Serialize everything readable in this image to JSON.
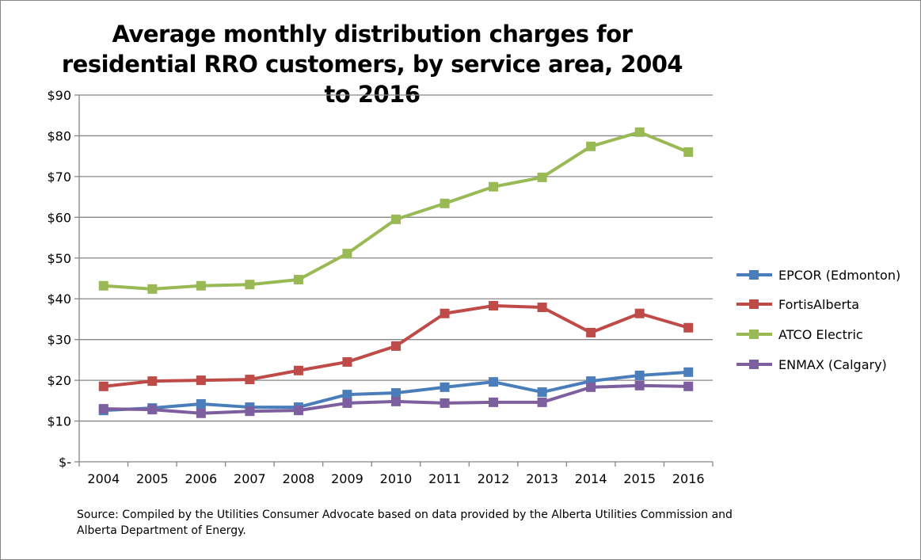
{
  "chart_data": {
    "type": "line",
    "title": "Average monthly distribution charges for residential RRO customers, by service area, 2004 to 2016",
    "source": "Source: Compiled by the Utilities Consumer Advocate based on data provided by the Alberta Utilities Commission and Alberta Department of Energy.",
    "categories": [
      "2004",
      "2005",
      "2006",
      "2007",
      "2008",
      "2009",
      "2010",
      "2011",
      "2012",
      "2013",
      "2014",
      "2015",
      "2016"
    ],
    "ylim": [
      0,
      90
    ],
    "yticks": [
      0,
      10,
      20,
      30,
      40,
      50,
      60,
      70,
      80,
      90
    ],
    "ytick_labels": [
      "$-",
      "$10",
      "$20",
      "$30",
      "$40",
      "$50",
      "$60",
      "$70",
      "$80",
      "$90"
    ],
    "grid": true,
    "legend": "right",
    "series": [
      {
        "name": "EPCOR (Edmonton)",
        "color": "#4a7ebb",
        "values": [
          12.6,
          13.2,
          14.2,
          13.4,
          13.4,
          16.5,
          16.9,
          18.3,
          19.6,
          17.1,
          19.8,
          21.2,
          22.0
        ]
      },
      {
        "name": "FortisAlberta",
        "color": "#be4b48",
        "values": [
          18.5,
          19.8,
          20.0,
          20.2,
          22.4,
          24.5,
          28.4,
          36.4,
          38.3,
          37.9,
          31.7,
          36.4,
          32.9
        ]
      },
      {
        "name": "ATCO Electric",
        "color": "#98b954",
        "values": [
          43.2,
          42.4,
          43.2,
          43.5,
          44.7,
          51.1,
          59.5,
          63.4,
          67.5,
          69.8,
          77.4,
          80.9,
          76.0
        ]
      },
      {
        "name": "ENMAX (Calgary)",
        "color": "#7d5fa0",
        "values": [
          13.0,
          12.8,
          11.9,
          12.4,
          12.6,
          14.4,
          14.8,
          14.4,
          14.6,
          14.6,
          18.3,
          18.7,
          18.5
        ]
      }
    ]
  }
}
